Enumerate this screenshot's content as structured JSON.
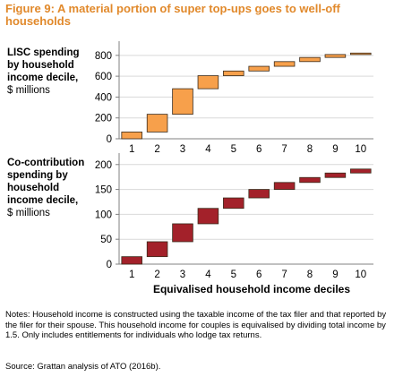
{
  "figure_title": "Figure 9: A material portion of super top-ups goes to well-off households",
  "notes": "Notes: Household income is constructed using the taxable income of the tax filer and that reported by the filer for their spouse. This household income for couples is equivalised by dividing total income by 1.5. Only includes entitlements for individuals who lodge tax returns.",
  "source": "Source: Grattan analysis of ATO (2016b).",
  "colors": {
    "lisc": "#f7a04b",
    "cocontribution": "#a3212a",
    "axis": "#808080",
    "grid": "#d9d9d9"
  },
  "chart_data": [
    {
      "type": "bar",
      "subtype": "waterfall",
      "label_lines": [
        "LISC spending",
        "by household",
        "income decile,"
      ],
      "unit_label": "$ millions",
      "categories": [
        "1",
        "2",
        "3",
        "4",
        "5",
        "6",
        "7",
        "8",
        "9",
        "10"
      ],
      "yticks": [
        "0",
        "200",
        "400",
        "600",
        "800"
      ],
      "ylim": [
        0,
        850
      ],
      "grid": true,
      "series": [
        {
          "color": "#f7a04b",
          "starts": [
            0,
            65,
            235,
            480,
            605,
            650,
            695,
            740,
            780,
            808
          ],
          "ends": [
            65,
            235,
            480,
            605,
            650,
            695,
            740,
            780,
            808,
            822
          ]
        }
      ]
    },
    {
      "type": "bar",
      "subtype": "waterfall",
      "label_lines": [
        "Co-contribution",
        "spending by",
        "household",
        "income decile,"
      ],
      "unit_label": "$ millions",
      "categories": [
        "1",
        "2",
        "3",
        "4",
        "5",
        "6",
        "7",
        "8",
        "9",
        "10"
      ],
      "yticks": [
        "0",
        "50",
        "100",
        "150",
        "200"
      ],
      "ylim": [
        0,
        205
      ],
      "grid": true,
      "xlabel": "Equivalised household income deciles",
      "series": [
        {
          "color": "#a3212a",
          "starts": [
            0,
            15,
            45,
            81,
            112,
            133,
            150,
            164,
            174,
            183
          ],
          "ends": [
            15,
            45,
            81,
            112,
            133,
            150,
            164,
            174,
            183,
            191
          ]
        }
      ]
    }
  ]
}
